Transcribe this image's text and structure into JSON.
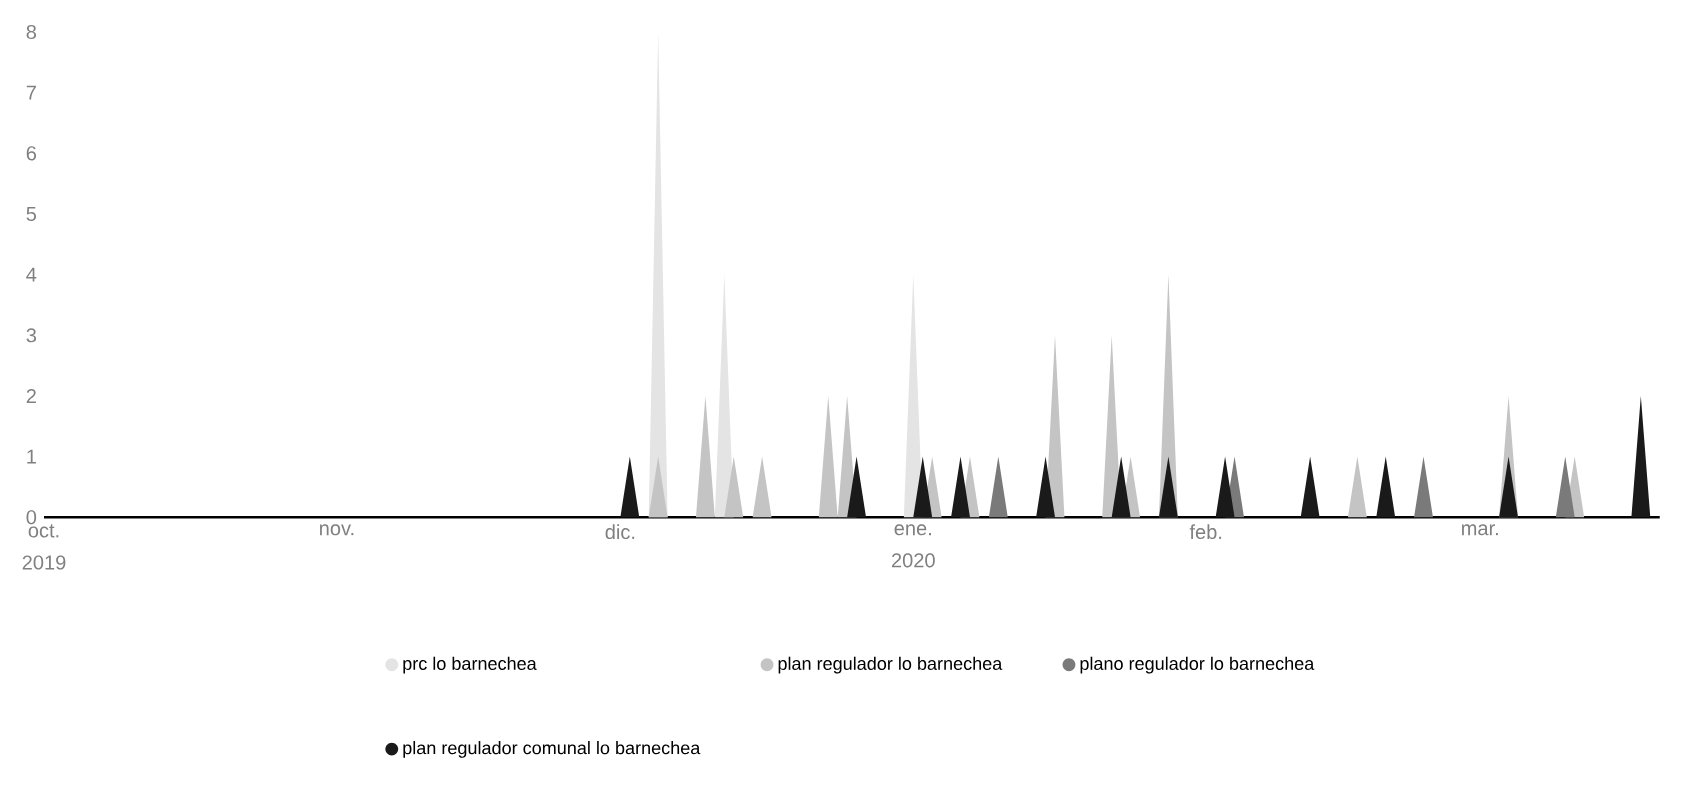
{
  "chart_data": {
    "type": "area",
    "xlim": [
      "2019-10-01",
      "2020-03-20"
    ],
    "xticks": [
      {
        "value": "2019-10-01",
        "label": "oct."
      },
      {
        "value": "2019-11-01",
        "label": "nov."
      },
      {
        "value": "2019-12-01",
        "label": "dic."
      },
      {
        "value": "2020-01-01",
        "label": "ene."
      },
      {
        "value": "2020-02-01",
        "label": "feb."
      },
      {
        "value": "2020-03-01",
        "label": "mar."
      }
    ],
    "ylim": [
      0,
      8
    ],
    "yticks": [
      0,
      1,
      2,
      3,
      4,
      5,
      6,
      7,
      8
    ],
    "annotations": [
      "2019",
      "2020"
    ],
    "legend": "bottom",
    "series": [
      {
        "name": "prc lo barnechea",
        "color": "#e4e4e4",
        "x": [
          "2019-10-01",
          "2019-12-04",
          "2019-12-05",
          "2019-12-06",
          "2019-12-11",
          "2019-12-12",
          "2019-12-13",
          "2019-12-31",
          "2020-01-01",
          "2020-01-02",
          "2020-03-20"
        ],
        "values": [
          0,
          0,
          8,
          0,
          0,
          4,
          0,
          0,
          4,
          0,
          0
        ]
      },
      {
        "name": "plan regulador lo barnechea",
        "color": "#c4c4c4",
        "x": [
          "2019-10-01",
          "2019-12-04",
          "2019-12-05",
          "2019-12-06",
          "2019-12-09",
          "2019-12-10",
          "2019-12-11",
          "2019-12-12",
          "2019-12-13",
          "2019-12-14",
          "2019-12-15",
          "2019-12-16",
          "2019-12-17",
          "2019-12-22",
          "2019-12-23",
          "2019-12-24",
          "2019-12-25",
          "2019-12-26",
          "2020-01-02",
          "2020-01-03",
          "2020-01-04",
          "2020-01-06",
          "2020-01-07",
          "2020-01-08",
          "2020-01-15",
          "2020-01-16",
          "2020-01-17",
          "2020-01-21",
          "2020-01-22",
          "2020-01-23",
          "2020-01-24",
          "2020-01-25",
          "2020-01-27",
          "2020-01-28",
          "2020-01-29",
          "2020-02-16",
          "2020-02-17",
          "2020-02-18",
          "2020-03-03",
          "2020-03-04",
          "2020-03-05",
          "2020-03-10",
          "2020-03-11",
          "2020-03-12",
          "2020-03-20"
        ],
        "values": [
          0,
          0,
          1,
          0,
          0,
          2,
          0,
          0,
          1,
          0,
          0,
          1,
          0,
          0,
          2,
          0,
          2,
          0,
          0,
          1,
          0,
          0,
          1,
          0,
          0,
          3,
          0,
          0,
          3,
          0,
          1,
          0,
          0,
          4,
          0,
          0,
          1,
          0,
          0,
          2,
          0,
          0,
          1,
          0,
          0
        ]
      },
      {
        "name": "plano regulador lo barnechea",
        "color": "#7a7a7a",
        "x": [
          "2019-10-01",
          "2020-01-09",
          "2020-01-10",
          "2020-01-11",
          "2020-02-03",
          "2020-02-04",
          "2020-02-05",
          "2020-02-23",
          "2020-02-24",
          "2020-02-25",
          "2020-03-09",
          "2020-03-10",
          "2020-03-11",
          "2020-03-20"
        ],
        "values": [
          0,
          0,
          1,
          0,
          0,
          1,
          0,
          0,
          1,
          0,
          0,
          1,
          0,
          0
        ]
      },
      {
        "name": "plan regulador comunal lo barnechea",
        "color": "#1a1a1a",
        "x": [
          "2019-10-01",
          "2019-12-01",
          "2019-12-02",
          "2019-12-03",
          "2019-12-25",
          "2019-12-26",
          "2019-12-27",
          "2020-01-01",
          "2020-01-02",
          "2020-01-03",
          "2020-01-05",
          "2020-01-06",
          "2020-01-07",
          "2020-01-14",
          "2020-01-15",
          "2020-01-16",
          "2020-01-22",
          "2020-01-23",
          "2020-01-24",
          "2020-01-27",
          "2020-01-28",
          "2020-01-29",
          "2020-02-02",
          "2020-02-03",
          "2020-02-04",
          "2020-02-11",
          "2020-02-12",
          "2020-02-13",
          "2020-02-19",
          "2020-02-20",
          "2020-02-21",
          "2020-03-03",
          "2020-03-04",
          "2020-03-05",
          "2020-03-17",
          "2020-03-18",
          "2020-03-19",
          "2020-03-20"
        ],
        "values": [
          0,
          0,
          1,
          0,
          0,
          1,
          0,
          0,
          1,
          0,
          0,
          1,
          0,
          0,
          1,
          0,
          0,
          1,
          0,
          0,
          1,
          0,
          0,
          1,
          0,
          0,
          1,
          0,
          0,
          1,
          0,
          0,
          1,
          0,
          0,
          2,
          0,
          0
        ]
      }
    ]
  }
}
